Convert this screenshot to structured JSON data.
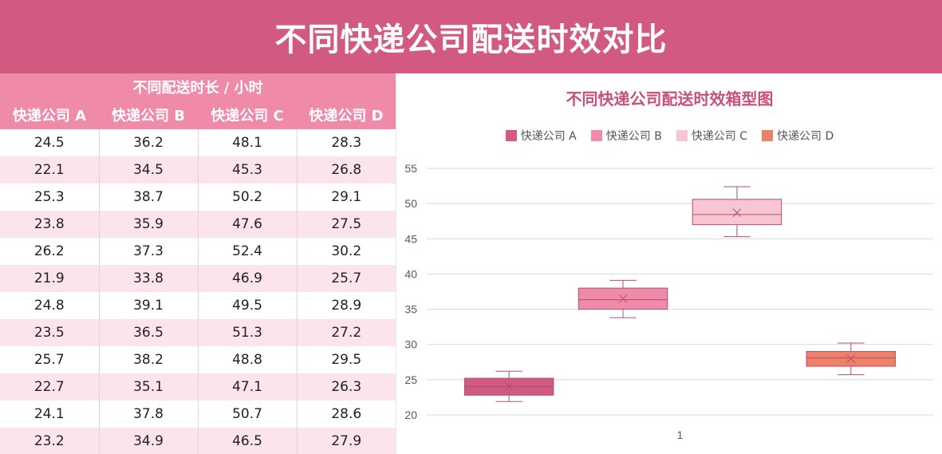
{
  "page_title": "不同快递公司配送时效对比",
  "table": {
    "group_header": "不同配送时长 / 小时",
    "columns": [
      "快递公司 A",
      "快递公司 B",
      "快递公司 C",
      "快递公司 D"
    ],
    "rows": [
      [
        "24.5",
        "36.2",
        "48.1",
        "28.3"
      ],
      [
        "22.1",
        "34.5",
        "45.3",
        "26.8"
      ],
      [
        "25.3",
        "38.7",
        "50.2",
        "29.1"
      ],
      [
        "23.8",
        "35.9",
        "47.6",
        "27.5"
      ],
      [
        "26.2",
        "37.3",
        "52.4",
        "30.2"
      ],
      [
        "21.9",
        "33.8",
        "46.9",
        "25.7"
      ],
      [
        "24.8",
        "39.1",
        "49.5",
        "28.9"
      ],
      [
        "23.5",
        "36.5",
        "51.3",
        "27.2"
      ],
      [
        "25.7",
        "38.2",
        "48.8",
        "29.5"
      ],
      [
        "22.7",
        "35.1",
        "47.1",
        "26.3"
      ],
      [
        "24.1",
        "37.8",
        "50.7",
        "28.6"
      ],
      [
        "23.2",
        "34.9",
        "46.5",
        "27.9"
      ]
    ]
  },
  "chart_data": {
    "type": "box",
    "title": "不同快递公司配送时效箱型图",
    "categories": [
      "1"
    ],
    "xlabel": "",
    "ylabel": "",
    "ylim": [
      20,
      55
    ],
    "yticks": [
      20,
      25,
      30,
      35,
      40,
      45,
      50,
      55
    ],
    "grid": true,
    "legend_position": "top",
    "series": [
      {
        "name": "快递公司 A",
        "color": "#d25a80",
        "min": 21.9,
        "q1": 22.8,
        "median": 24.0,
        "q3": 25.2,
        "max": 26.2,
        "mean": 24.0
      },
      {
        "name": "快递公司 B",
        "color": "#f08aa9",
        "min": 33.8,
        "q1": 35.0,
        "median": 36.35,
        "q3": 38.0,
        "max": 39.1,
        "mean": 36.5
      },
      {
        "name": "快递公司 C",
        "color": "#f7c6d2",
        "min": 45.3,
        "q1": 47.0,
        "median": 48.45,
        "q3": 50.6,
        "max": 52.4,
        "mean": 48.7
      },
      {
        "name": "快递公司 D",
        "color": "#ee8066",
        "min": 25.7,
        "q1": 26.9,
        "median": 28.1,
        "q3": 29.0,
        "max": 30.2,
        "mean": 28.0
      }
    ]
  }
}
